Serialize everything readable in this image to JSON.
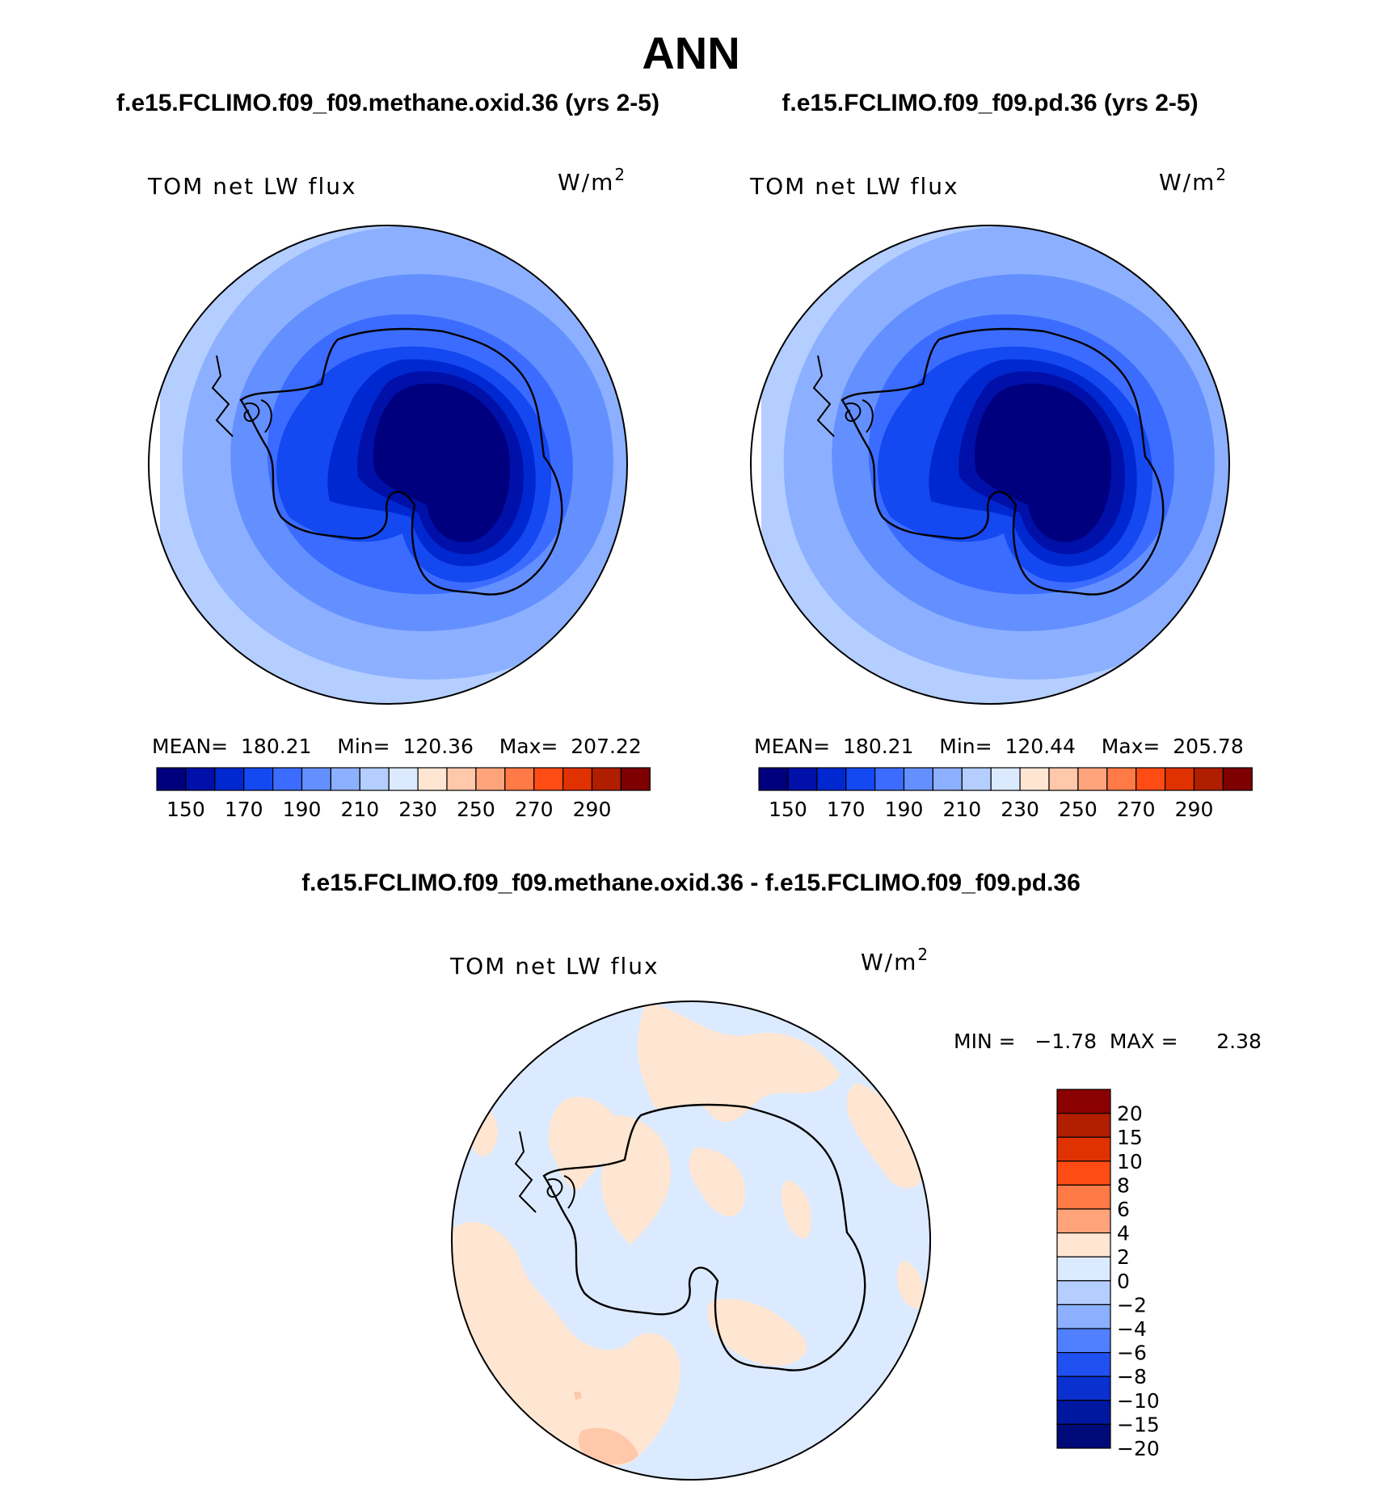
{
  "title": "ANN",
  "panels": [
    {
      "case_title": "f.e15.FCLIMO.f09_f09.methane.oxid.36 (yrs 2-5)",
      "variable": "TOM net LW flux",
      "units": "W/m",
      "units_sup": "2",
      "stats": "MEAN=  180.21    Min=  120.36    Max=  207.22"
    },
    {
      "case_title": "f.e15.FCLIMO.f09_f09.pd.36 (yrs 2-5)",
      "variable": "TOM net LW flux",
      "units": "W/m",
      "units_sup": "2",
      "stats": "MEAN=  180.21    Min=  120.44    Max=  205.78"
    }
  ],
  "horizontal_colorbar": {
    "colors": [
      "#00007f",
      "#0010a8",
      "#0028d0",
      "#1448f0",
      "#3c6cff",
      "#6490ff",
      "#8cb0ff",
      "#b4ceff",
      "#dceaff",
      "#ffe6d2",
      "#ffc8aa",
      "#ffa37a",
      "#ff7a46",
      "#ff4c14",
      "#e03200",
      "#b01e00",
      "#7f0000"
    ],
    "tick_labels": [
      "150",
      "170",
      "190",
      "210",
      "230",
      "250",
      "270",
      "290"
    ]
  },
  "diff_panel": {
    "title": "f.e15.FCLIMO.f09_f09.methane.oxid.36 - f.e15.FCLIMO.f09_f09.pd.36",
    "variable": "TOM net LW flux",
    "units": "W/m",
    "units_sup": "2",
    "stats": "MIN =   −1.78  MAX =      2.38",
    "colorbar_colors_top_to_bottom": [
      "#8b0000",
      "#b21e00",
      "#e03200",
      "#ff4c14",
      "#ff7a46",
      "#ffa37a",
      "#ffe6d2",
      "#dceaff",
      "#b4ceff",
      "#8cb0ff",
      "#5080ff",
      "#2050f0",
      "#0a30d0",
      "#0018a0",
      "#000a78"
    ],
    "colorbar_labels_top_to_bottom": [
      "20",
      "15",
      "10",
      "8",
      "6",
      "4",
      "2",
      "0",
      "−2",
      "−4",
      "−6",
      "−8",
      "−10",
      "−15",
      "−20"
    ]
  }
}
